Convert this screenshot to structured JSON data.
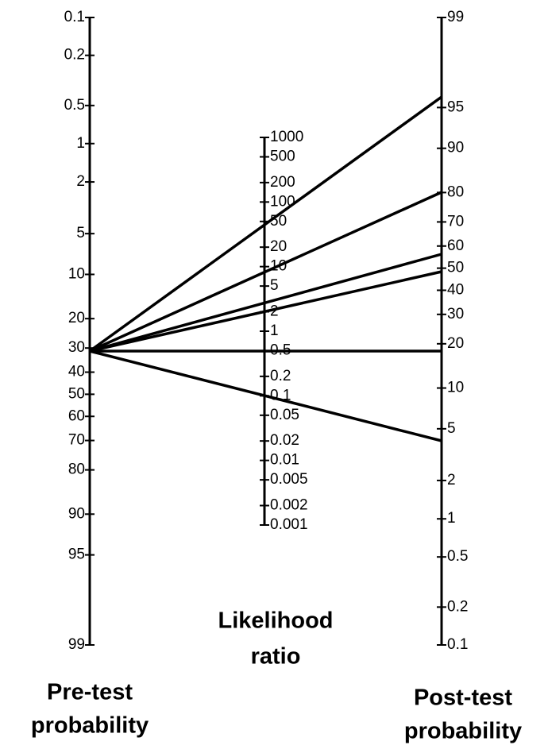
{
  "pre_test_axis": {
    "title": [
      "Pre-test",
      "probability"
    ],
    "ticks": [
      0.1,
      0.2,
      0.5,
      1,
      2,
      5,
      10,
      20,
      30,
      40,
      50,
      60,
      70,
      80,
      90,
      95,
      99
    ]
  },
  "likelihood_ratio_axis": {
    "title": [
      "Likelihood",
      "ratio"
    ],
    "ticks": [
      1000,
      500,
      200,
      100,
      50,
      20,
      10,
      5,
      2,
      1,
      0.5,
      0.2,
      0.1,
      0.05,
      0.02,
      0.01,
      0.005,
      0.002,
      0.001
    ]
  },
  "post_test_axis": {
    "title": [
      "Post-test",
      "probability"
    ],
    "ticks": [
      99,
      95,
      90,
      80,
      70,
      60,
      50,
      40,
      30,
      20,
      10,
      5,
      2,
      1,
      0.5,
      0.2,
      0.1
    ]
  }
}
